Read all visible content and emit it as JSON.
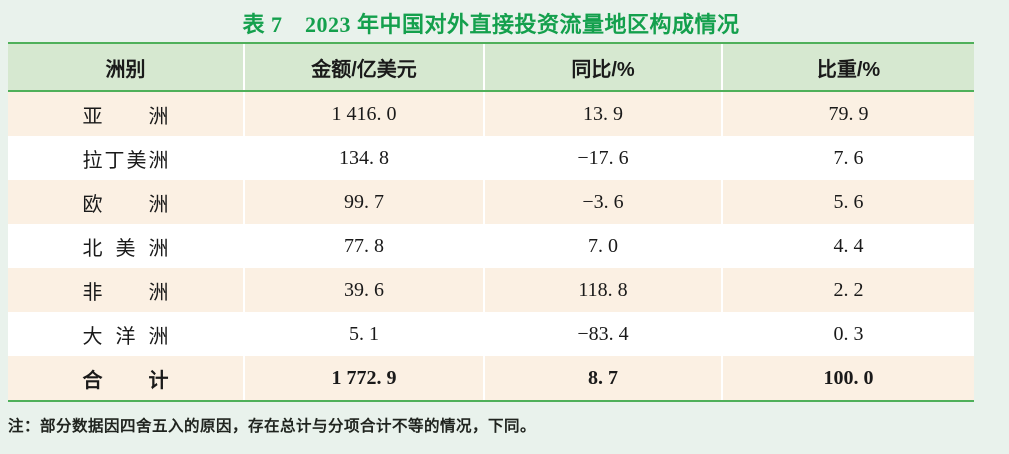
{
  "title": "表 7　2023 年中国对外直接投资流量地区构成情况",
  "table": {
    "columns": [
      "洲别",
      "金额/亿美元",
      "同比/%",
      "比重/%"
    ],
    "rows": [
      {
        "region": "亚洲",
        "amount": "1 416. 0",
        "yoy": "13. 9",
        "share": "79. 9"
      },
      {
        "region": "拉丁美洲",
        "amount": "134. 8",
        "yoy": "−17. 6",
        "share": "7. 6"
      },
      {
        "region": "欧洲",
        "amount": "99. 7",
        "yoy": "−3. 6",
        "share": "5. 6"
      },
      {
        "region": "北美洲",
        "amount": "77. 8",
        "yoy": "7. 0",
        "share": "4. 4"
      },
      {
        "region": "非洲",
        "amount": "39. 6",
        "yoy": "118. 8",
        "share": "2. 2"
      },
      {
        "region": "大洋洲",
        "amount": "5. 1",
        "yoy": "−83. 4",
        "share": "0. 3"
      }
    ],
    "total": {
      "region": "合计",
      "amount": "1 772. 9",
      "yoy": "8. 7",
      "share": "100. 0"
    }
  },
  "note": "注：部分数据因四舍五入的原因，存在总计与分项合计不等的情况，下同。",
  "colors": {
    "page_background": "#e9f2ec",
    "header_background": "#d6e8d0",
    "alt_row_background": "#fbf0e3",
    "table_border_green": "#4fb05a",
    "title_green": "#14a04d"
  },
  "chart_data": {
    "type": "table",
    "title": "表 7　2023 年中国对外直接投资流量地区构成情况",
    "categories": [
      "亚洲",
      "拉丁美洲",
      "欧洲",
      "北美洲",
      "非洲",
      "大洋洲",
      "合计"
    ],
    "series": [
      {
        "name": "金额/亿美元",
        "values": [
          1416.0,
          134.8,
          99.7,
          77.8,
          39.6,
          5.1,
          1772.9
        ]
      },
      {
        "name": "同比/%",
        "values": [
          13.9,
          -17.6,
          -3.6,
          7.0,
          118.8,
          -83.4,
          8.7
        ]
      },
      {
        "name": "比重/%",
        "values": [
          79.9,
          7.6,
          5.6,
          4.4,
          2.2,
          0.3,
          100.0
        ]
      }
    ]
  }
}
